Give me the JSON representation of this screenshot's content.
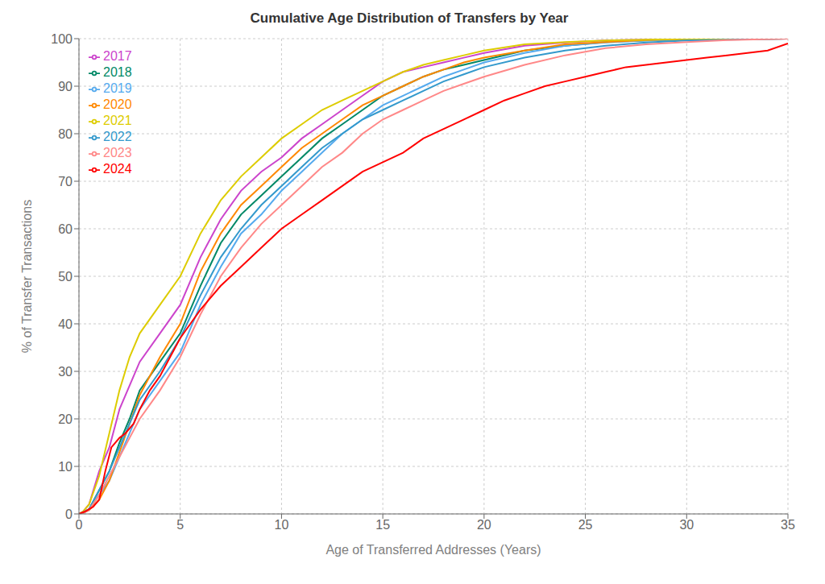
{
  "chart_data": {
    "type": "line",
    "title": "Cumulative Age Distribution of Transfers by Year",
    "xlabel": "Age of Transferred Addresses (Years)",
    "ylabel": "% of Transfer Transactions",
    "xlim": [
      0,
      35
    ],
    "ylim": [
      0,
      100
    ],
    "xticks": [
      0,
      5,
      10,
      15,
      20,
      25,
      30,
      35
    ],
    "yticks": [
      0,
      10,
      20,
      30,
      40,
      50,
      60,
      70,
      80,
      90,
      100
    ],
    "grid": true,
    "legend": "upper left",
    "series": [
      {
        "name": "2017",
        "color": "#cc44cc",
        "x": [
          0,
          0.2,
          0.5,
          1.0,
          1.5,
          2.0,
          2.5,
          3.0,
          4.0,
          5.0,
          6.0,
          7.0,
          8.0,
          9.0,
          10.0,
          11.0,
          12.0,
          13.0,
          14.0,
          15.0,
          16.0,
          17.0,
          18.0,
          19.0,
          20.0,
          22.0,
          24.0,
          26.0,
          28.0,
          30.0,
          35.0
        ],
        "values": [
          0,
          0.5,
          2,
          9,
          14,
          22,
          27,
          32,
          38,
          44,
          54,
          62,
          68,
          72,
          75,
          79,
          82,
          85,
          88,
          91,
          93,
          94,
          95,
          96,
          97,
          98.5,
          99.2,
          99.6,
          99.8,
          99.9,
          100
        ]
      },
      {
        "name": "2018",
        "color": "#008866",
        "x": [
          0,
          0.2,
          0.5,
          1.0,
          1.5,
          2.0,
          2.5,
          3.0,
          4.0,
          5.0,
          6.0,
          7.0,
          8.0,
          9.0,
          10.0,
          11.0,
          12.0,
          13.0,
          14.0,
          15.0,
          16.0,
          17.0,
          18.0,
          19.0,
          20.0,
          22.0,
          24.0,
          26.0,
          28.0,
          30.0,
          35.0
        ],
        "values": [
          0,
          0.3,
          1,
          5,
          9,
          15,
          20,
          26,
          32,
          38,
          48,
          57,
          63,
          67,
          71,
          75,
          79,
          82,
          85,
          88,
          90,
          92,
          93.5,
          94.5,
          95.5,
          97.5,
          98.5,
          99.3,
          99.6,
          99.8,
          100
        ]
      },
      {
        "name": "2019",
        "color": "#55aaee",
        "x": [
          0,
          0.2,
          0.5,
          1.0,
          1.5,
          2.0,
          2.5,
          3.0,
          4.0,
          5.0,
          6.0,
          7.0,
          8.0,
          9.0,
          10.0,
          11.0,
          12.0,
          13.0,
          14.0,
          15.0,
          16.0,
          17.0,
          18.0,
          19.0,
          20.0,
          22.0,
          24.0,
          26.0,
          28.0,
          30.0,
          35.0
        ],
        "values": [
          0,
          0.2,
          0.8,
          4,
          7,
          12,
          17,
          22,
          28,
          34,
          44,
          52,
          59,
          63,
          68,
          72,
          76,
          80,
          83,
          86,
          88,
          90,
          92,
          93.5,
          95,
          97,
          98.5,
          99.2,
          99.6,
          99.8,
          100
        ]
      },
      {
        "name": "2020",
        "color": "#ff8800",
        "x": [
          0,
          0.2,
          0.5,
          1.0,
          1.5,
          2.0,
          2.5,
          3.0,
          4.0,
          5.0,
          6.0,
          7.0,
          8.0,
          9.0,
          10.0,
          11.0,
          12.0,
          13.0,
          14.0,
          15.0,
          16.0,
          17.0,
          18.0,
          19.0,
          20.0,
          22.0,
          24.0,
          26.0,
          28.0,
          30.0,
          35.0
        ],
        "values": [
          0,
          0.2,
          0.8,
          3,
          7,
          13,
          19,
          25,
          33,
          40,
          51,
          59,
          65,
          69,
          73,
          77,
          80,
          83,
          86,
          88,
          90,
          92,
          93.5,
          95,
          96,
          97.5,
          98.8,
          99.3,
          99.7,
          99.9,
          100
        ]
      },
      {
        "name": "2021",
        "color": "#ddcc00",
        "x": [
          0,
          0.2,
          0.5,
          1.0,
          1.5,
          2.0,
          2.5,
          3.0,
          4.0,
          5.0,
          6.0,
          7.0,
          8.0,
          9.0,
          10.0,
          11.0,
          12.0,
          13.0,
          14.0,
          15.0,
          16.0,
          17.0,
          18.0,
          19.0,
          20.0,
          22.0,
          24.0,
          26.0,
          28.0,
          30.0,
          35.0
        ],
        "values": [
          0,
          0.5,
          2,
          8,
          17,
          26,
          33,
          38,
          44,
          50,
          59,
          66,
          71,
          75,
          79,
          82,
          85,
          87,
          89,
          91,
          93,
          94.5,
          95.5,
          96.5,
          97.5,
          98.8,
          99.3,
          99.6,
          99.8,
          99.9,
          100
        ]
      },
      {
        "name": "2022",
        "color": "#3399cc",
        "x": [
          0,
          0.2,
          0.5,
          1.0,
          1.5,
          2.0,
          2.5,
          3.0,
          4.0,
          5.0,
          6.0,
          7.0,
          8.0,
          9.0,
          10.0,
          11.0,
          12.0,
          13.0,
          14.0,
          15.0,
          16.0,
          17.0,
          18.0,
          19.0,
          20.0,
          22.0,
          24.0,
          26.0,
          28.0,
          30.0,
          35.0
        ],
        "values": [
          0,
          0.3,
          1,
          5,
          9,
          14,
          19,
          24,
          30,
          37,
          46,
          54,
          60,
          65,
          69,
          73,
          77,
          80,
          83,
          85,
          87,
          89,
          91,
          92.5,
          94,
          96,
          97.5,
          98.5,
          99.2,
          99.6,
          100
        ]
      },
      {
        "name": "2023",
        "color": "#ff8888",
        "x": [
          0,
          0.2,
          0.5,
          1.0,
          1.5,
          2.0,
          2.5,
          3.0,
          4.0,
          5.0,
          6.0,
          7.0,
          8.0,
          9.0,
          10.0,
          11.0,
          12.0,
          13.0,
          14.0,
          15.0,
          16.0,
          17.0,
          18.0,
          19.0,
          20.0,
          22.0,
          24.0,
          26.0,
          28.0,
          30.0,
          32.0,
          35.0
        ],
        "values": [
          0,
          0.2,
          0.8,
          4,
          8,
          12,
          16,
          20,
          26,
          33,
          42,
          50,
          56,
          61,
          65,
          69,
          73,
          76,
          80,
          83,
          85,
          87,
          89,
          90.5,
          92,
          94.5,
          96.5,
          98,
          98.8,
          99.3,
          99.7,
          100
        ]
      },
      {
        "name": "2024",
        "color": "#ff0000",
        "x": [
          0,
          0.3,
          0.7,
          1.0,
          1.3,
          1.6,
          2.0,
          2.3,
          2.7,
          3.0,
          3.5,
          4.0,
          4.5,
          5.0,
          5.5,
          6.0,
          7.0,
          8.0,
          9.0,
          10.0,
          11.0,
          12.0,
          13.0,
          14.0,
          15.0,
          16.0,
          17.0,
          18.0,
          19.0,
          20.0,
          21.0,
          22.0,
          23.0,
          24.0,
          25.0,
          26.0,
          27.0,
          28.0,
          29.0,
          30.0,
          31.0,
          32.0,
          33.0,
          34.0,
          35.0
        ],
        "values": [
          0,
          0.5,
          1.5,
          3,
          9,
          14,
          16,
          17,
          19,
          22,
          26,
          29,
          33,
          37,
          40,
          43,
          48,
          52,
          56,
          60,
          63,
          66,
          69,
          72,
          74,
          76,
          79,
          81,
          83,
          85,
          87,
          88.5,
          90,
          91,
          92,
          93,
          94,
          94.5,
          95,
          95.5,
          96,
          96.5,
          97,
          97.5,
          99
        ]
      }
    ]
  }
}
